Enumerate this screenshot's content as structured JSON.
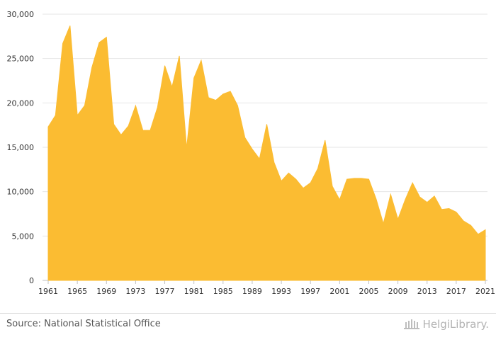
{
  "chart_data": {
    "type": "area",
    "title": "",
    "xlabel": "",
    "ylabel": "",
    "x": [
      1961,
      1962,
      1963,
      1964,
      1965,
      1966,
      1967,
      1968,
      1969,
      1970,
      1971,
      1972,
      1973,
      1974,
      1975,
      1976,
      1977,
      1978,
      1979,
      1980,
      1981,
      1982,
      1983,
      1984,
      1985,
      1986,
      1987,
      1988,
      1989,
      1990,
      1991,
      1992,
      1993,
      1994,
      1995,
      1996,
      1997,
      1998,
      1999,
      2000,
      2001,
      2002,
      2003,
      2004,
      2005,
      2006,
      2007,
      2008,
      2009,
      2010,
      2011,
      2012,
      2013,
      2014,
      2015,
      2016,
      2017,
      2018,
      2019,
      2020,
      2021
    ],
    "values": [
      17300,
      18600,
      26700,
      28700,
      18600,
      19700,
      24000,
      26800,
      27400,
      17600,
      16400,
      17400,
      19700,
      16900,
      16900,
      19500,
      24200,
      21800,
      25300,
      14900,
      22800,
      24800,
      20600,
      20300,
      21000,
      21300,
      19700,
      16100,
      14800,
      13700,
      17600,
      13300,
      11200,
      12100,
      11400,
      10400,
      11000,
      12600,
      15800,
      10600,
      9100,
      11400,
      11500,
      11500,
      11400,
      9200,
      6400,
      9700,
      6900,
      9100,
      11000,
      9400,
      8800,
      9500,
      8000,
      8100,
      7700,
      6700,
      6200,
      5200,
      5700
    ],
    "ylim": [
      0,
      30000
    ],
    "yticks": [
      0,
      5000,
      10000,
      15000,
      20000,
      25000,
      30000
    ],
    "ytick_labels": [
      "0",
      "5,000",
      "10,000",
      "15,000",
      "20,000",
      "25,000",
      "30,000"
    ],
    "xticks": [
      1961,
      1965,
      1969,
      1973,
      1977,
      1981,
      1985,
      1989,
      1993,
      1997,
      2001,
      2005,
      2009,
      2013,
      2017,
      2021
    ],
    "xtick_labels": [
      "1961",
      "1965",
      "1969",
      "1973",
      "1977",
      "1981",
      "1985",
      "1989",
      "1993",
      "1997",
      "2001",
      "2005",
      "2009",
      "2013",
      "2017",
      "2021"
    ],
    "grid": true,
    "fill_color": "#fbbc32"
  },
  "footer": {
    "source": "Source: National Statistical Office",
    "logo_text": "HelgiLibrary."
  }
}
